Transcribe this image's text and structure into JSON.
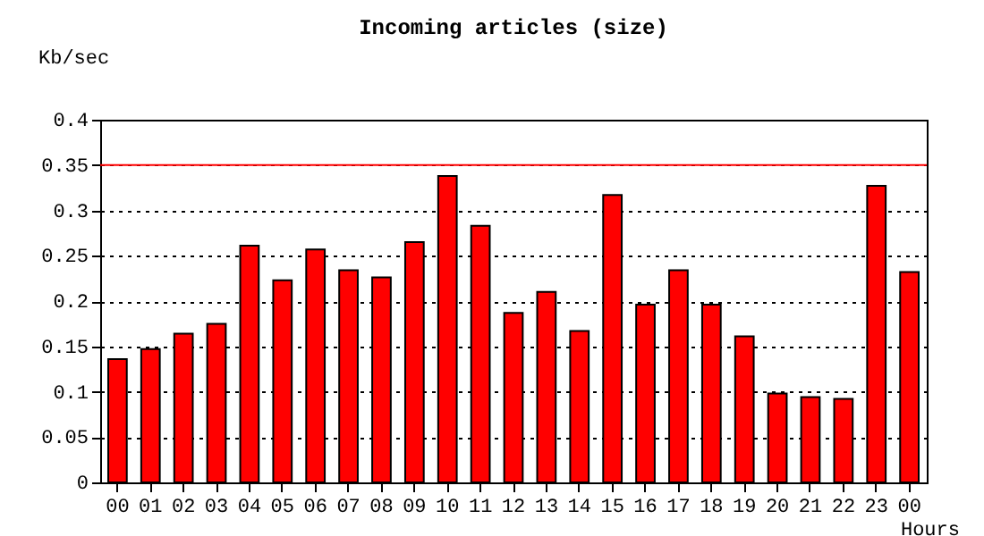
{
  "chart_data": {
    "type": "bar",
    "title": "Incoming articles (size)",
    "xlabel": "Hours",
    "ylabel": "Kb/sec",
    "categories": [
      "00",
      "01",
      "02",
      "03",
      "04",
      "05",
      "06",
      "07",
      "08",
      "09",
      "10",
      "11",
      "12",
      "13",
      "14",
      "15",
      "16",
      "17",
      "18",
      "19",
      "20",
      "21",
      "22",
      "23",
      "00"
    ],
    "values": [
      0.136,
      0.147,
      0.164,
      0.175,
      0.261,
      0.223,
      0.257,
      0.234,
      0.226,
      0.265,
      0.338,
      0.283,
      0.187,
      0.21,
      0.167,
      0.317,
      0.196,
      0.234,
      0.196,
      0.161,
      0.098,
      0.094,
      0.092,
      0.327,
      0.232
    ],
    "color": "#ff0000",
    "ylim": [
      0,
      0.4
    ],
    "yticks": [
      0,
      0.05,
      0.1,
      0.15,
      0.2,
      0.25,
      0.3,
      0.35,
      0.4
    ],
    "grid": "y",
    "ref_lines": [
      {
        "axis": "y",
        "value": 0.35,
        "color": "#ff0000",
        "line_style": "solid"
      }
    ]
  }
}
